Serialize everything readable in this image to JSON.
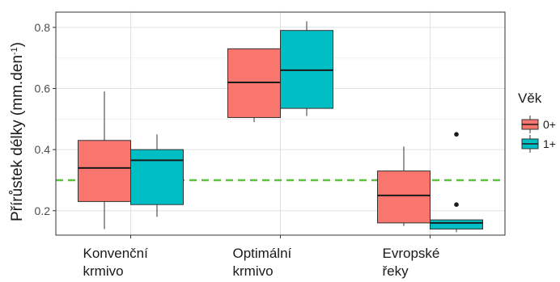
{
  "chart_data": {
    "type": "box",
    "ylabel_main": "Přírůstek délky (mm.den",
    "ylabel_sup": "-1",
    "ylabel_close": ")",
    "ylim": [
      0.12,
      0.85
    ],
    "yticks": [
      0.2,
      0.4,
      0.6,
      0.8
    ],
    "ytick_labels": [
      "0.2",
      "0.4",
      "0.6",
      "0.8"
    ],
    "grid": true,
    "reference_line": {
      "y": 0.3,
      "style": "dashed",
      "color": "#5fbf3f"
    },
    "categories": [
      {
        "lines": [
          "Konvenční",
          "krmivo"
        ]
      },
      {
        "lines": [
          "Optimální",
          "krmivo"
        ]
      },
      {
        "lines": [
          "Evropské",
          "řeky"
        ]
      }
    ],
    "legend": {
      "title": "Věk",
      "position": "right"
    },
    "series": [
      {
        "name": "0+",
        "color": "#f8766d",
        "boxes": [
          {
            "min": 0.14,
            "q1": 0.23,
            "median": 0.34,
            "q3": 0.43,
            "max": 0.59,
            "outliers": []
          },
          {
            "min": 0.49,
            "q1": 0.505,
            "median": 0.62,
            "q3": 0.73,
            "max": 0.73,
            "outliers": []
          },
          {
            "min": 0.15,
            "q1": 0.16,
            "median": 0.25,
            "q3": 0.33,
            "max": 0.41,
            "outliers": []
          }
        ]
      },
      {
        "name": "1+",
        "color": "#00bfc4",
        "boxes": [
          {
            "min": 0.18,
            "q1": 0.22,
            "median": 0.365,
            "q3": 0.4,
            "max": 0.45,
            "outliers": []
          },
          {
            "min": 0.51,
            "q1": 0.535,
            "median": 0.66,
            "q3": 0.79,
            "max": 0.82,
            "outliers": []
          },
          {
            "min": 0.13,
            "q1": 0.14,
            "median": 0.16,
            "q3": 0.17,
            "max": 0.17,
            "outliers": [
              0.22,
              0.45
            ]
          }
        ]
      }
    ]
  }
}
